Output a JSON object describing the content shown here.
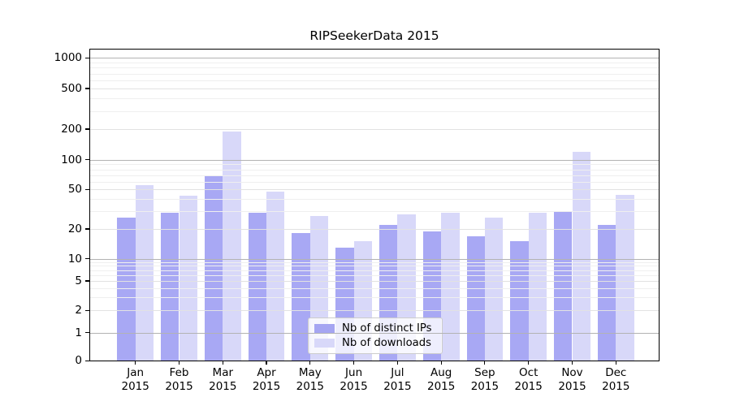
{
  "chart_data": {
    "type": "bar",
    "title": "RIPSeekerData 2015",
    "categories": [
      "Jan",
      "Feb",
      "Mar",
      "Apr",
      "May",
      "Jun",
      "Jul",
      "Aug",
      "Sep",
      "Oct",
      "Nov",
      "Dec"
    ],
    "category_year": "2015",
    "series": [
      {
        "name": "Nb of distinct IPs",
        "color": "rgba(131,131,240,0.7)",
        "legend_color": "#a5a5f2",
        "values": [
          26,
          29,
          70,
          29,
          18,
          13,
          22,
          19,
          17,
          15,
          30,
          22
        ]
      },
      {
        "name": "Nb of downloads",
        "color": "rgba(199,199,246,0.7)",
        "legend_color": "#d8d8f9",
        "values": [
          55,
          43,
          190,
          48,
          27,
          15,
          28,
          29,
          26,
          29,
          120,
          44
        ]
      }
    ],
    "yscale": "symlog",
    "y_ticks": [
      0,
      1,
      2,
      5,
      10,
      20,
      50,
      100,
      200,
      500,
      1000
    ],
    "y_minor_ticks": [
      3,
      4,
      6,
      7,
      8,
      9,
      30,
      40,
      60,
      70,
      80,
      90,
      300,
      400,
      600,
      700,
      800,
      900
    ],
    "y_decade_lines": [
      1,
      10,
      100,
      1000
    ],
    "ylim": [
      0,
      1200
    ],
    "xlabel": "",
    "ylabel": "",
    "grid": true,
    "legend_position": "lower center"
  }
}
